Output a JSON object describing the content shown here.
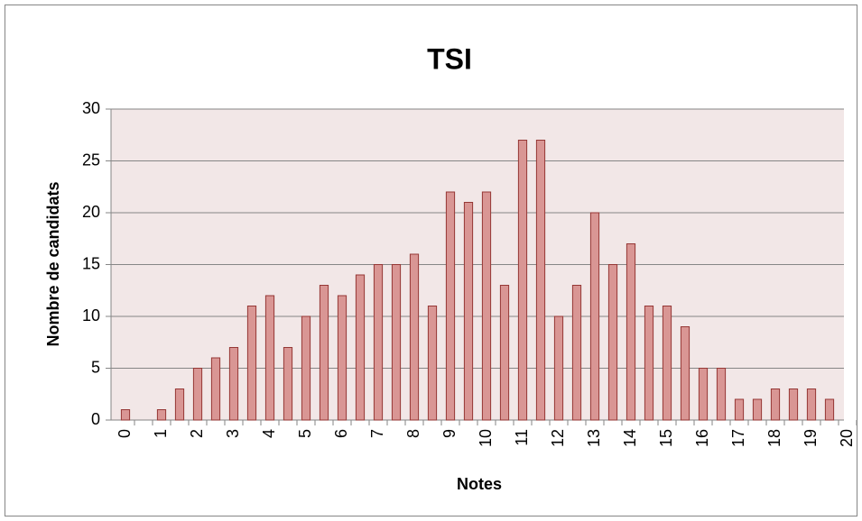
{
  "chart_data": {
    "type": "bar",
    "title": "TSI",
    "x_label": "Notes",
    "y_label": "Nombre de candidats",
    "categories": [
      "0",
      null,
      "1",
      null,
      "2",
      null,
      "3",
      null,
      "4",
      null,
      "5",
      null,
      "6",
      null,
      "7",
      null,
      "8",
      null,
      "9",
      null,
      "10",
      null,
      "11",
      null,
      "12",
      null,
      "13",
      null,
      "14",
      null,
      "15",
      null,
      "16",
      null,
      "17",
      null,
      "18",
      null,
      "19",
      null,
      "20"
    ],
    "values": [
      1,
      0,
      1,
      3,
      5,
      6,
      7,
      11,
      12,
      7,
      10,
      13,
      12,
      14,
      15,
      15,
      16,
      11,
      22,
      21,
      22,
      13,
      27,
      27,
      10,
      13,
      20,
      15,
      17,
      11,
      11,
      9,
      5,
      5,
      2,
      2,
      3,
      3,
      3,
      2,
      0
    ],
    "color": "#d99694",
    "edge_color": "#953735",
    "ylim": [
      0,
      30
    ],
    "yticks": [
      0,
      5,
      10,
      15,
      20,
      25,
      30
    ],
    "grid": true
  }
}
